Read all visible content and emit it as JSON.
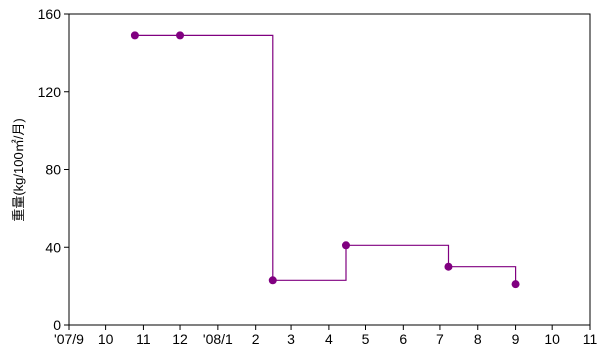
{
  "chart_data": {
    "type": "line",
    "step": "post",
    "title": "",
    "xlabel": "",
    "ylabel": "重量(kg/100㎡/月)",
    "y_ticks": [
      "0",
      "40",
      "80",
      "120",
      "160"
    ],
    "x_ticks": [
      "'07/9",
      "10",
      "11",
      "12",
      "'08/1",
      "2",
      "3",
      "4",
      "5",
      "6",
      "7",
      "8",
      "9",
      "10",
      "11"
    ],
    "ylim": [
      0,
      160
    ],
    "xlim": [
      "2007-09-01",
      "2008-11-01"
    ],
    "grid": false,
    "series": [
      {
        "x": [
          "2007-10-25",
          "2007-12-01",
          "2008-02-15",
          "2008-04-15",
          "2008-07-08",
          "2008-09-01"
        ],
        "y": [
          149,
          149,
          23,
          41,
          30,
          21
        ],
        "color": "#800080"
      }
    ]
  }
}
